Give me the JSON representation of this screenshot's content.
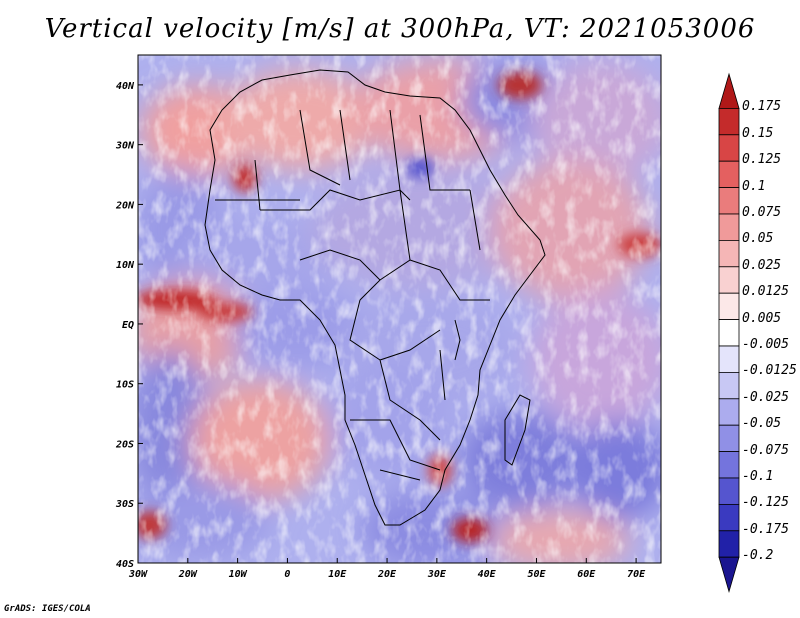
{
  "title": "Vertical velocity [m/s] at 300hPa, VT: 2021053006",
  "credit": "GrADS: IGES/COLA",
  "lat_labels": [
    "40N",
    "30N",
    "20N",
    "10N",
    "EQ",
    "10S",
    "20S",
    "30S",
    "40S"
  ],
  "lon_labels": [
    "30W",
    "20W",
    "10W",
    "0",
    "10E",
    "20E",
    "30E",
    "40E",
    "50E",
    "60E",
    "70E"
  ],
  "colorbar": {
    "labels": [
      "0.175",
      "0.15",
      "0.125",
      "0.1",
      "0.075",
      "0.05",
      "0.025",
      "0.0125",
      "0.005",
      "-0.005",
      "-0.0125",
      "-0.025",
      "-0.05",
      "-0.075",
      "-0.1",
      "-0.125",
      "-0.175",
      "-0.2"
    ],
    "colors": [
      "#b01818",
      "#c42b2b",
      "#d84545",
      "#e46060",
      "#ea7c7c",
      "#f09a9a",
      "#f5b6b6",
      "#f9d1d1",
      "#fce8e8",
      "#ffffff",
      "#e4e4fb",
      "#c8c8f4",
      "#acacee",
      "#9090e6",
      "#7474dd",
      "#5555cf",
      "#3a3ac0",
      "#2121a8",
      "#1a1590"
    ]
  },
  "colors": {
    "positive": "#e05a5a",
    "negative": "#5a5ad8",
    "border": "#000000"
  }
}
